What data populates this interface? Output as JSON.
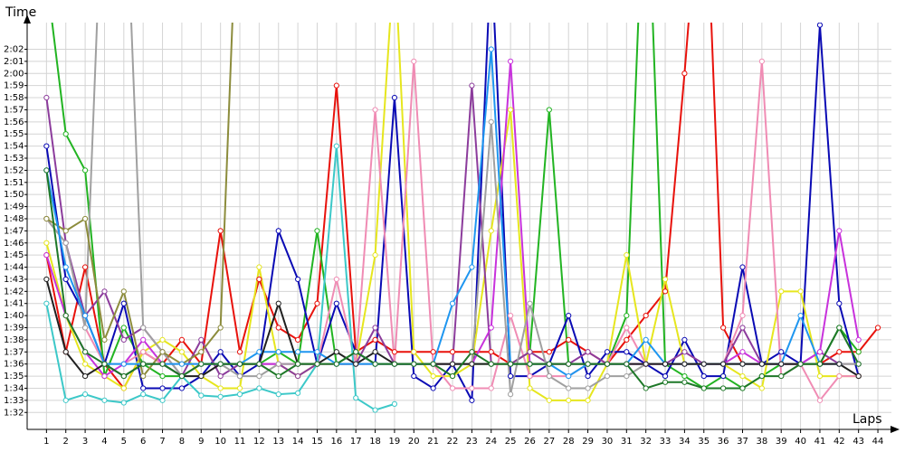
{
  "chart_data": {
    "type": "line",
    "y_label": "Time",
    "x_label": "Laps",
    "x": [
      1,
      2,
      3,
      4,
      5,
      6,
      7,
      8,
      9,
      10,
      11,
      12,
      13,
      14,
      15,
      16,
      17,
      18,
      19,
      20,
      21,
      22,
      23,
      24,
      25,
      26,
      27,
      28,
      29,
      30,
      31,
      32,
      33,
      34,
      35,
      36,
      37,
      38,
      39,
      40,
      41,
      42,
      43,
      44
    ],
    "xlim": [
      0,
      44.7
    ],
    "xticks": [
      1,
      2,
      3,
      4,
      5,
      6,
      7,
      8,
      9,
      10,
      11,
      12,
      13,
      14,
      15,
      16,
      17,
      18,
      19,
      20,
      21,
      22,
      23,
      24,
      25,
      26,
      27,
      28,
      29,
      30,
      31,
      32,
      33,
      34,
      35,
      36,
      37,
      38,
      39,
      40,
      41,
      42,
      43,
      44
    ],
    "ylim": [
      90.6,
      124.2
    ],
    "yticks": [
      {
        "value": 92,
        "label": "1:32"
      },
      {
        "value": 93,
        "label": "1:33"
      },
      {
        "value": 94,
        "label": "1:34"
      },
      {
        "value": 95,
        "label": "1:35"
      },
      {
        "value": 96,
        "label": "1:36"
      },
      {
        "value": 97,
        "label": "1:37"
      },
      {
        "value": 98,
        "label": "1:38"
      },
      {
        "value": 99,
        "label": "1:39"
      },
      {
        "value": 100,
        "label": "1:40"
      },
      {
        "value": 101,
        "label": "1:41"
      },
      {
        "value": 102,
        "label": "1:42"
      },
      {
        "value": 103,
        "label": "1:43"
      },
      {
        "value": 104,
        "label": "1:44"
      },
      {
        "value": 105,
        "label": "1:45"
      },
      {
        "value": 106,
        "label": "1:46"
      },
      {
        "value": 107,
        "label": "1:47"
      },
      {
        "value": 108,
        "label": "1:48"
      },
      {
        "value": 109,
        "label": "1:49"
      },
      {
        "value": 110,
        "label": "1:50"
      },
      {
        "value": 111,
        "label": "1:51"
      },
      {
        "value": 112,
        "label": "1:52"
      },
      {
        "value": 113,
        "label": "1:53"
      },
      {
        "value": 114,
        "label": "1:54"
      },
      {
        "value": 115,
        "label": "1:55"
      },
      {
        "value": 116,
        "label": "1:56"
      },
      {
        "value": 117,
        "label": "1:57"
      },
      {
        "value": 118,
        "label": "1:58"
      },
      {
        "value": 119,
        "label": "1:59"
      },
      {
        "value": 120,
        "label": "2:00"
      },
      {
        "value": 121,
        "label": "2:01"
      },
      {
        "value": 122,
        "label": "2:02"
      }
    ],
    "grid": true,
    "series": [
      {
        "color": "#e8120c",
        "values": [
          105,
          97,
          104,
          96,
          94,
          97,
          96,
          98,
          96,
          107,
          97,
          103,
          99,
          98,
          101,
          119,
          97,
          98,
          97,
          97,
          97,
          97,
          97,
          97,
          96,
          97,
          97,
          98,
          97,
          96,
          98,
          100,
          102,
          120,
          140,
          99,
          96,
          96,
          96,
          96,
          96,
          97,
          97,
          99
        ]
      },
      {
        "color": "#22b422",
        "values": [
          128,
          115,
          112,
          95,
          99,
          96,
          95,
          95,
          96,
          96,
          96,
          96,
          97,
          96,
          107,
          96,
          97,
          96,
          96,
          96,
          96,
          96,
          96,
          96,
          96,
          97,
          117,
          96,
          96,
          96,
          100,
          140,
          96,
          95,
          94,
          95,
          94,
          95,
          96,
          96,
          96,
          99,
          97,
          null
        ]
      },
      {
        "color": "#0a0ab4",
        "values": [
          114,
          103,
          100,
          96,
          101,
          94,
          94,
          94,
          95,
          97,
          95,
          96,
          107,
          103,
          96,
          101,
          97,
          96,
          118,
          95,
          94,
          96,
          93,
          130,
          95,
          95,
          96,
          100,
          95,
          97,
          97,
          96,
          95,
          98,
          95,
          95,
          104,
          96,
          97,
          96,
          124,
          101,
          95,
          null
        ]
      },
      {
        "color": "#e6e61e",
        "values": [
          106,
          100,
          96,
          95,
          94,
          97,
          98,
          97,
          95,
          94,
          94,
          104,
          96,
          95,
          96,
          96,
          96,
          105,
          130,
          97,
          95,
          95,
          96,
          107,
          117,
          94,
          93,
          93,
          93,
          96,
          105,
          96,
          103,
          96,
          96,
          96,
          95,
          94,
          102,
          102,
          95,
          95,
          95,
          null
        ]
      },
      {
        "color": "#f08cb4",
        "values": [
          108,
          106,
          99,
          96,
          96,
          97,
          96,
          96,
          96,
          96,
          96,
          96,
          96,
          96,
          96,
          103,
          96,
          117,
          96,
          121,
          96,
          94,
          94,
          94,
          100,
          95,
          95,
          95,
          96,
          96,
          99,
          96,
          96,
          96,
          96,
          96,
          100,
          121,
          95,
          96,
          93,
          95,
          95,
          null
        ]
      },
      {
        "color": "#8c3c9c",
        "values": [
          118,
          106,
          100,
          102,
          98,
          99,
          97,
          95,
          98,
          95,
          96,
          96,
          96,
          95,
          96,
          96,
          96,
          99,
          96,
          96,
          96,
          96,
          119,
          96,
          96,
          97,
          96,
          96,
          97,
          96,
          96,
          96,
          96,
          97,
          96,
          96,
          99,
          96,
          96,
          96,
          97,
          96,
          96,
          null
        ]
      },
      {
        "color": "#c832dc",
        "values": [
          105,
          100,
          97,
          95,
          96,
          98,
          96,
          95,
          96,
          96,
          96,
          96,
          96,
          96,
          96,
          96,
          96,
          96,
          96,
          96,
          96,
          96,
          96,
          99,
          121,
          96,
          96,
          96,
          96,
          96,
          96,
          96,
          96,
          96,
          96,
          96,
          97,
          96,
          96,
          96,
          97,
          107,
          98,
          null
        ]
      },
      {
        "color": "#3cc8c8",
        "values": [
          101,
          93,
          93.5,
          93,
          92.8,
          93.5,
          93,
          95,
          93.4,
          93.3,
          93.5,
          94,
          93.5,
          93.6,
          96,
          114,
          93.2,
          92.2,
          92.7,
          null,
          null,
          null,
          null,
          null,
          null,
          null,
          null,
          null,
          null,
          null,
          null,
          null,
          null,
          null,
          null,
          null,
          null,
          null,
          null,
          null,
          null,
          null,
          null,
          null
        ]
      },
      {
        "color": "#a0a0a0",
        "values": [
          108,
          106,
          99,
          140,
          140,
          99,
          97,
          95,
          96,
          96,
          95,
          95,
          96,
          96,
          96,
          96,
          96,
          96,
          96,
          96,
          96,
          96,
          96,
          116,
          93.5,
          101,
          95,
          94,
          94,
          95,
          95,
          96,
          96,
          96,
          96,
          96,
          96,
          96,
          96,
          96,
          96,
          96,
          96,
          null
        ]
      },
      {
        "color": "#8c8c3c",
        "values": [
          108,
          107,
          108,
          98,
          102,
          95,
          97,
          96,
          97,
          99,
          140,
          null,
          null,
          null,
          null,
          null,
          null,
          null,
          null,
          null,
          null,
          null,
          null,
          null,
          null,
          null,
          null,
          null,
          null,
          null,
          null,
          null,
          null,
          null,
          null,
          null,
          null,
          null,
          null,
          null,
          null,
          null,
          null,
          null
        ]
      },
      {
        "color": "#1e96f0",
        "values": [
          112,
          104,
          100,
          96,
          96,
          96,
          96,
          96,
          96,
          96,
          96,
          97,
          97,
          97,
          97,
          96,
          96,
          96,
          96,
          96,
          96,
          101,
          104,
          122,
          96,
          96,
          96,
          95,
          96,
          96,
          96,
          98,
          96,
          96,
          96,
          96,
          96,
          96,
          96,
          100,
          96,
          96,
          null,
          null
        ]
      },
      {
        "color": "#202020",
        "values": [
          103,
          97,
          95,
          96,
          95,
          96,
          96,
          95,
          95,
          96,
          96,
          96,
          101,
          96,
          96,
          97,
          96,
          97,
          96,
          96,
          96,
          96,
          96,
          96,
          96,
          96,
          96,
          96,
          96,
          96,
          96,
          96,
          96,
          96,
          96,
          96,
          96,
          96,
          96,
          96,
          96,
          96,
          95,
          null
        ]
      },
      {
        "color": "#1e7828",
        "values": [
          112,
          100,
          97,
          96,
          95,
          96,
          96,
          95,
          96,
          96,
          96,
          96,
          95,
          96,
          96,
          96,
          97,
          96,
          96,
          96,
          96,
          95,
          97,
          96,
          96,
          96,
          96,
          96,
          96,
          96,
          96,
          94,
          94.5,
          94.5,
          94,
          94,
          94,
          95,
          95,
          96,
          96,
          99,
          96,
          null
        ]
      }
    ]
  }
}
